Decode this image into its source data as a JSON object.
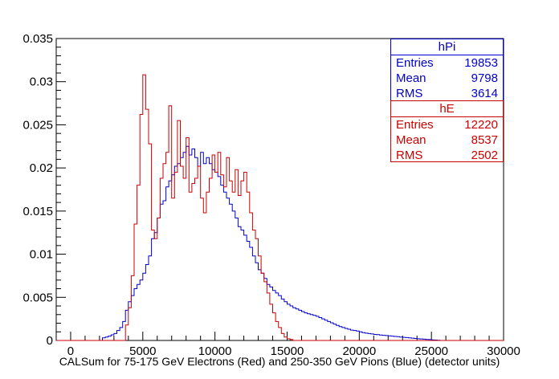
{
  "chart_data": {
    "type": "histogram",
    "xlabel": "CALSum for 75-175 GeV Electrons (Red) and 250-350 GeV Pions (Blue) (detector units)",
    "ylabel": "",
    "xlim": [
      -1000,
      30000
    ],
    "ylim": [
      0,
      0.035
    ],
    "x_ticks": [
      0,
      5000,
      10000,
      15000,
      20000,
      25000,
      30000
    ],
    "y_ticks": [
      0,
      0.005,
      0.01,
      0.015,
      0.02,
      0.025,
      0.03,
      0.035
    ],
    "x_tick_labels": [
      "0",
      "5000",
      "10000",
      "15000",
      "20000",
      "25000",
      "30000"
    ],
    "y_tick_labels": [
      "0",
      "0.005",
      "0.01",
      "0.015",
      "0.02",
      "0.025",
      "0.03",
      "0.035"
    ],
    "bin_start": -1000,
    "bin_width": 200,
    "series": [
      {
        "name": "hPi",
        "color": "#0000cc",
        "bins": [
          [
            2000,
            0.0002
          ],
          [
            2600,
            0.0005
          ],
          [
            3000,
            0.0008
          ],
          [
            3400,
            0.0015
          ],
          [
            3600,
            0.0022
          ],
          [
            3800,
            0.0035
          ],
          [
            4000,
            0.0045
          ],
          [
            4200,
            0.0052
          ],
          [
            4400,
            0.006
          ],
          [
            4600,
            0.0065
          ],
          [
            4800,
            0.007
          ],
          [
            5000,
            0.0078
          ],
          [
            5200,
            0.0088
          ],
          [
            5400,
            0.0098
          ],
          [
            5600,
            0.0118
          ],
          [
            5800,
            0.0125
          ],
          [
            6000,
            0.0142
          ],
          [
            6200,
            0.0158
          ],
          [
            6400,
            0.0162
          ],
          [
            6600,
            0.0178
          ],
          [
            6800,
            0.0185
          ],
          [
            7000,
            0.0192
          ],
          [
            7200,
            0.0202
          ],
          [
            7400,
            0.0205
          ],
          [
            7600,
            0.0212
          ],
          [
            7800,
            0.0218
          ],
          [
            8000,
            0.0225
          ],
          [
            8200,
            0.0215
          ],
          [
            8400,
            0.0222
          ],
          [
            8600,
            0.0212
          ],
          [
            8800,
            0.0202
          ],
          [
            9000,
            0.0218
          ],
          [
            9200,
            0.0205
          ],
          [
            9400,
            0.0212
          ],
          [
            9600,
            0.0205
          ],
          [
            9800,
            0.0198
          ],
          [
            10000,
            0.0195
          ],
          [
            10200,
            0.019
          ],
          [
            10400,
            0.018
          ],
          [
            10600,
            0.0172
          ],
          [
            10800,
            0.0165
          ],
          [
            11000,
            0.0158
          ],
          [
            11200,
            0.015
          ],
          [
            11400,
            0.0142
          ],
          [
            11600,
            0.0132
          ],
          [
            11800,
            0.0128
          ],
          [
            12000,
            0.0122
          ],
          [
            12200,
            0.0115
          ],
          [
            12400,
            0.0108
          ],
          [
            12600,
            0.0098
          ],
          [
            12800,
            0.009
          ],
          [
            13000,
            0.0082
          ],
          [
            13200,
            0.0078
          ],
          [
            13400,
            0.0072
          ],
          [
            13600,
            0.0065
          ],
          [
            13800,
            0.0062
          ],
          [
            14000,
            0.0058
          ],
          [
            14200,
            0.0055
          ],
          [
            14400,
            0.0052
          ],
          [
            14600,
            0.0048
          ],
          [
            14800,
            0.0045
          ],
          [
            15000,
            0.0042
          ],
          [
            15400,
            0.0038
          ],
          [
            15800,
            0.0035
          ],
          [
            16200,
            0.0032
          ],
          [
            16600,
            0.003
          ],
          [
            17000,
            0.0028
          ],
          [
            17400,
            0.0025
          ],
          [
            17800,
            0.0022
          ],
          [
            18200,
            0.0019
          ],
          [
            18600,
            0.0016
          ],
          [
            19000,
            0.0014
          ],
          [
            19400,
            0.0012
          ],
          [
            19800,
            0.0011
          ],
          [
            20200,
            0.0009
          ],
          [
            20600,
            0.0008
          ],
          [
            21000,
            0.0007
          ],
          [
            21600,
            0.0006
          ],
          [
            22200,
            0.0005
          ],
          [
            22800,
            0.0004
          ],
          [
            23400,
            0.0003
          ],
          [
            24000,
            0.0002
          ],
          [
            24800,
            0.0001
          ],
          [
            25600,
            0
          ]
        ]
      },
      {
        "name": "hE",
        "color": "#cc0000",
        "bins": [
          [
            3600,
            0.0008
          ],
          [
            3800,
            0.0018
          ],
          [
            4000,
            0.0038
          ],
          [
            4200,
            0.0075
          ],
          [
            4400,
            0.0135
          ],
          [
            4600,
            0.018
          ],
          [
            4800,
            0.0262
          ],
          [
            5000,
            0.0308
          ],
          [
            5200,
            0.0268
          ],
          [
            5400,
            0.0228
          ],
          [
            5600,
            0.0128
          ],
          [
            5800,
            0.0118
          ],
          [
            6000,
            0.0142
          ],
          [
            6200,
            0.0188
          ],
          [
            6400,
            0.0205
          ],
          [
            6600,
            0.0218
          ],
          [
            6800,
            0.0272
          ],
          [
            7000,
            0.0165
          ],
          [
            7200,
            0.0195
          ],
          [
            7400,
            0.0255
          ],
          [
            7600,
            0.0202
          ],
          [
            7800,
            0.0188
          ],
          [
            8000,
            0.0235
          ],
          [
            8200,
            0.0172
          ],
          [
            8400,
            0.0182
          ],
          [
            8600,
            0.0188
          ],
          [
            8800,
            0.0202
          ],
          [
            9000,
            0.0165
          ],
          [
            9200,
            0.0148
          ],
          [
            9400,
            0.0172
          ],
          [
            9600,
            0.0188
          ],
          [
            9800,
            0.0215
          ],
          [
            10000,
            0.0195
          ],
          [
            10200,
            0.0218
          ],
          [
            10400,
            0.0192
          ],
          [
            10600,
            0.0178
          ],
          [
            10800,
            0.0212
          ],
          [
            11000,
            0.0185
          ],
          [
            11200,
            0.0172
          ],
          [
            11400,
            0.0198
          ],
          [
            11600,
            0.0168
          ],
          [
            11800,
            0.0185
          ],
          [
            12000,
            0.0195
          ],
          [
            12200,
            0.0172
          ],
          [
            12400,
            0.0148
          ],
          [
            12600,
            0.0128
          ],
          [
            12800,
            0.0118
          ],
          [
            13000,
            0.0098
          ],
          [
            13200,
            0.0078
          ],
          [
            13400,
            0.0068
          ],
          [
            13600,
            0.0055
          ],
          [
            13800,
            0.0042
          ],
          [
            14000,
            0.0032
          ],
          [
            14200,
            0.0022
          ],
          [
            14400,
            0.0015
          ],
          [
            14600,
            0.0008
          ],
          [
            14800,
            0.0004
          ],
          [
            15000,
            0.0002
          ],
          [
            15400,
            0
          ]
        ]
      }
    ]
  },
  "stats": [
    {
      "title": "hPi",
      "color": "#0000cc",
      "rows": [
        {
          "label": "Entries",
          "value": "19853"
        },
        {
          "label": "Mean",
          "value": "9798"
        },
        {
          "label": "RMS",
          "value": "3614"
        }
      ]
    },
    {
      "title": "hE",
      "color": "#cc0000",
      "rows": [
        {
          "label": "Entries",
          "value": "12220"
        },
        {
          "label": "Mean",
          "value": "8537"
        },
        {
          "label": "RMS",
          "value": "2502"
        }
      ]
    }
  ]
}
